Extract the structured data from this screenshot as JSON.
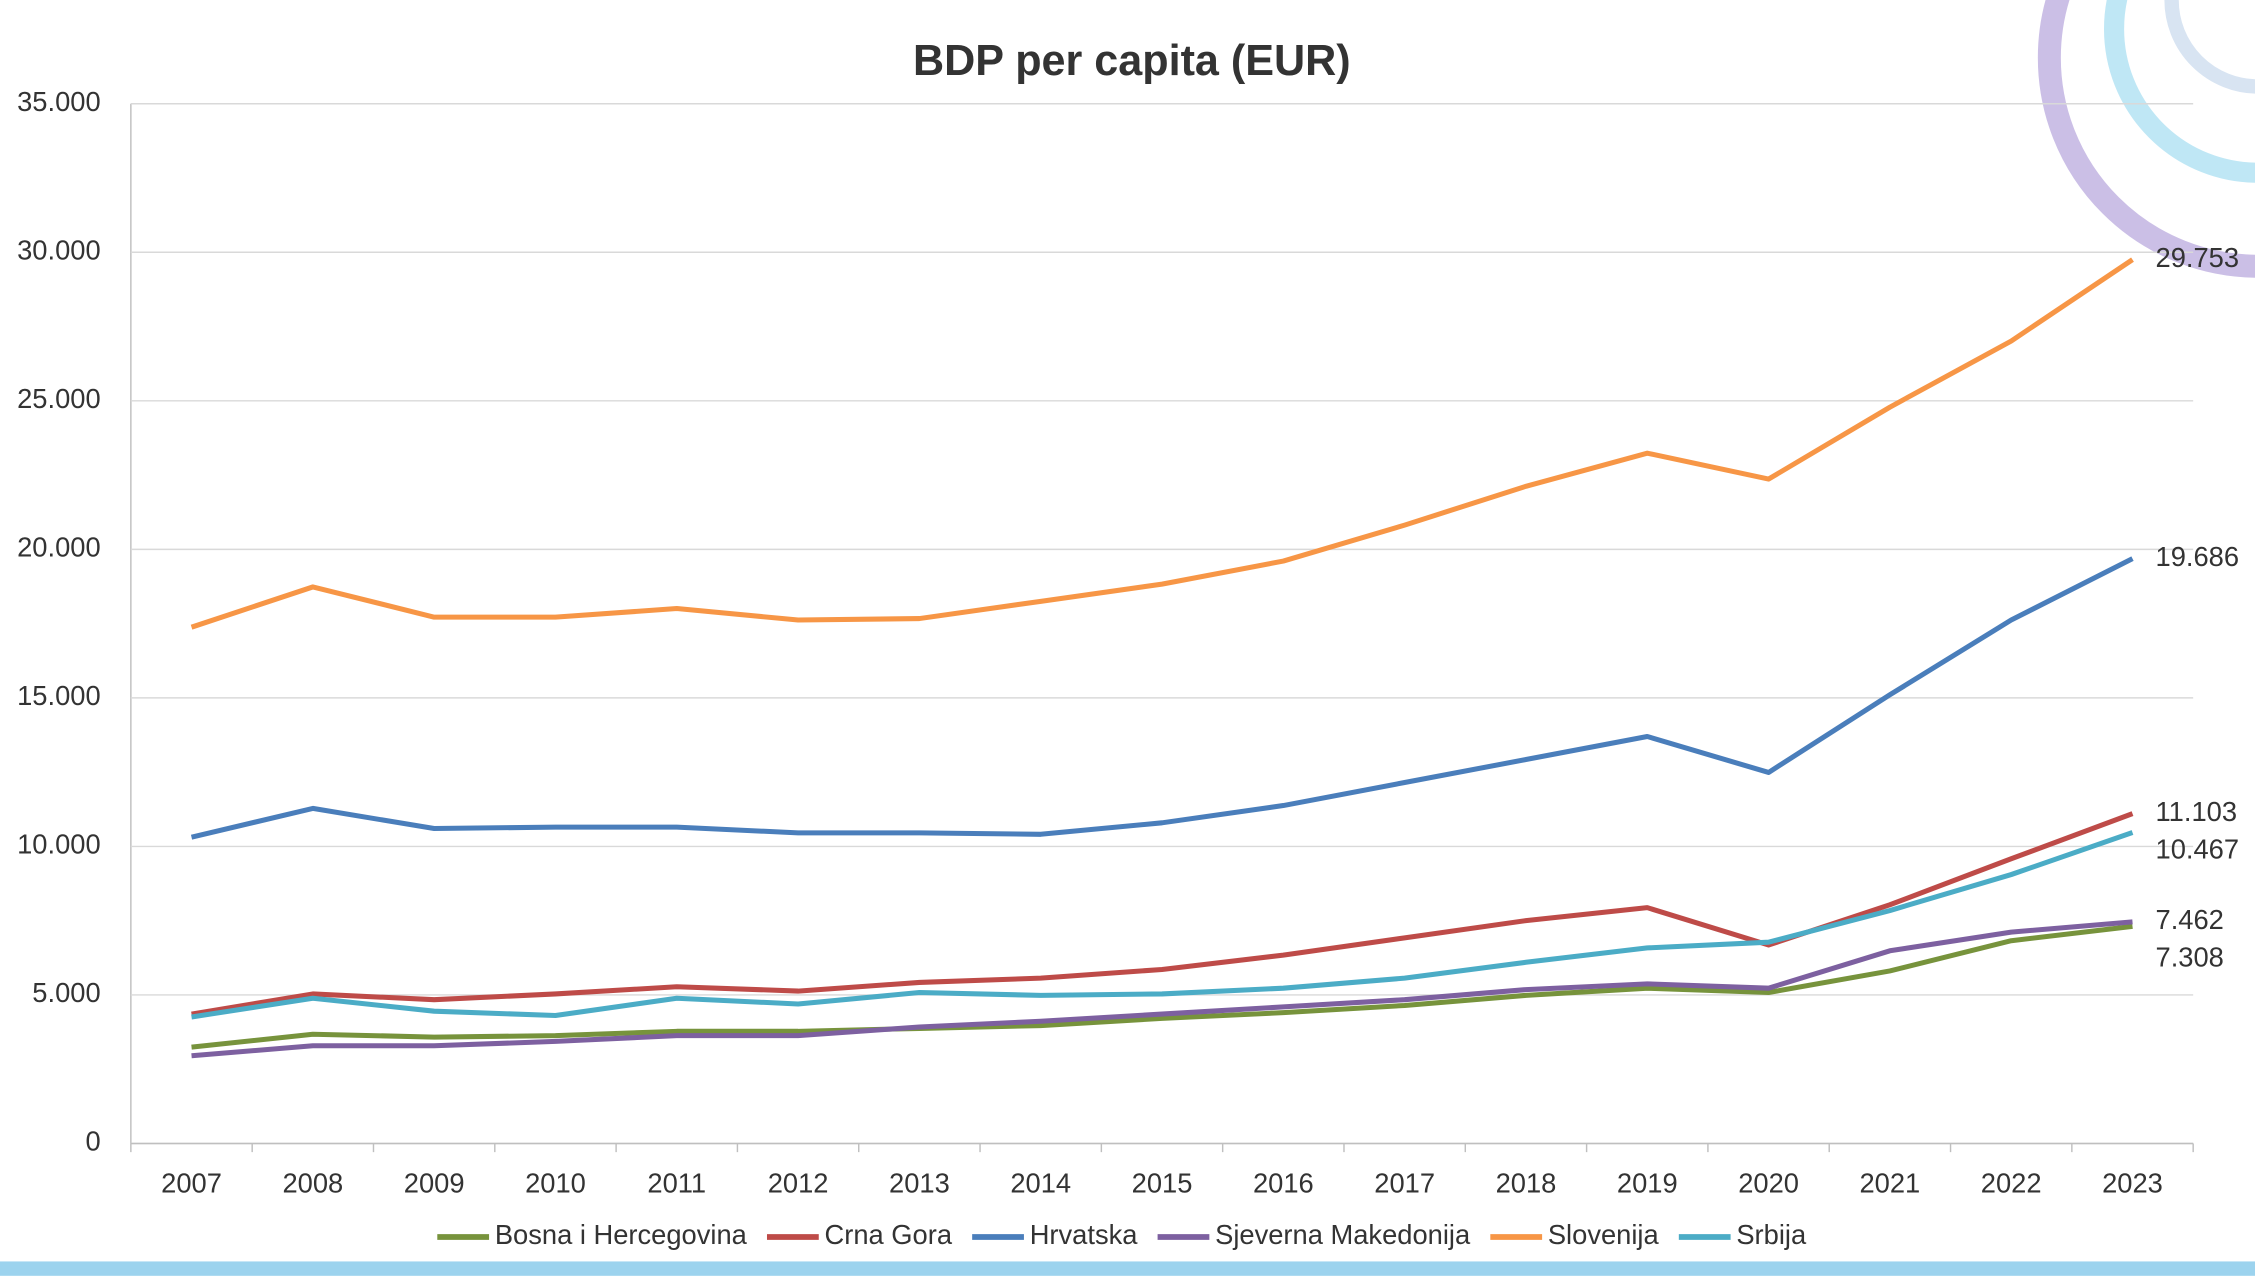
{
  "chart_data": {
    "type": "line",
    "title": "BDP per capita (EUR)",
    "categories": [
      "2007",
      "2008",
      "2009",
      "2010",
      "2011",
      "2012",
      "2013",
      "2014",
      "2015",
      "2016",
      "2017",
      "2018",
      "2019",
      "2020",
      "2021",
      "2022",
      "2023"
    ],
    "ylim": [
      0,
      35000
    ],
    "yticks": [
      0,
      {
        "value": 5000,
        "label": "5.000"
      },
      {
        "value": 10000,
        "label": "10.000"
      },
      {
        "value": 15000,
        "label": "15.000"
      },
      {
        "value": 20000,
        "label": "20.000"
      },
      {
        "value": 25000,
        "label": "25.000"
      },
      {
        "value": 30000,
        "label": "30.000"
      },
      {
        "value": 35000,
        "label": "35.000"
      }
    ],
    "grid": true,
    "legend": "bottom",
    "series": [
      {
        "name": "Bosna i Hercegovina",
        "color": "#77933c",
        "values": [
          3243,
          3679,
          3582,
          3631,
          3776,
          3776,
          3873,
          3970,
          4212,
          4405,
          4647,
          4986,
          5228,
          5083,
          5809,
          6826,
          7308
        ],
        "value_labels": [
          null,
          null,
          null,
          null,
          null,
          null,
          null,
          null,
          null,
          null,
          null,
          null,
          null,
          null,
          null,
          null,
          "7.308"
        ]
      },
      {
        "name": "Crna Gora",
        "color": "#be4b48",
        "values": [
          4357,
          5035,
          4841,
          5035,
          5277,
          5131,
          5422,
          5567,
          5858,
          6342,
          6923,
          7503,
          7939,
          6681,
          8036,
          9585,
          11103
        ],
        "value_labels": [
          null,
          null,
          null,
          null,
          null,
          null,
          null,
          null,
          null,
          null,
          null,
          null,
          null,
          null,
          null,
          null,
          "11.103"
        ]
      },
      {
        "name": "Hrvatska",
        "color": "#4a7ebb",
        "values": [
          10311,
          11280,
          10602,
          10650,
          10650,
          10456,
          10456,
          10408,
          10795,
          11376,
          12151,
          12925,
          13700,
          12490,
          15104,
          17621,
          19686
        ],
        "value_labels": [
          null,
          null,
          null,
          null,
          null,
          null,
          null,
          null,
          null,
          null,
          null,
          null,
          null,
          null,
          null,
          null,
          "19.686"
        ]
      },
      {
        "name": "Sjeverna Makedonija",
        "color": "#7d60a0",
        "values": [
          2953,
          3292,
          3292,
          3437,
          3631,
          3631,
          3921,
          4115,
          4357,
          4599,
          4841,
          5180,
          5374,
          5228,
          6487,
          7116,
          7462
        ],
        "value_labels": [
          null,
          null,
          null,
          null,
          null,
          null,
          null,
          null,
          null,
          null,
          null,
          null,
          null,
          null,
          null,
          null,
          "7.462"
        ]
      },
      {
        "name": "Slovenija",
        "color": "#f79646",
        "values": [
          17380,
          18735,
          17718,
          17718,
          18008,
          17621,
          17670,
          18250,
          18830,
          19606,
          20816,
          22123,
          23237,
          22365,
          24786,
          27012,
          29753
        ],
        "value_labels": [
          null,
          null,
          null,
          null,
          null,
          null,
          null,
          null,
          null,
          null,
          null,
          null,
          null,
          null,
          null,
          null,
          "29.753"
        ]
      },
      {
        "name": "Srbija",
        "color": "#4bacc6",
        "values": [
          4260,
          4889,
          4454,
          4308,
          4889,
          4696,
          5083,
          4986,
          5035,
          5228,
          5567,
          6100,
          6584,
          6777,
          7842,
          9053,
          10467
        ],
        "value_labels": [
          null,
          null,
          null,
          null,
          null,
          null,
          null,
          null,
          null,
          null,
          null,
          null,
          null,
          null,
          null,
          null,
          "10.467"
        ]
      }
    ]
  }
}
